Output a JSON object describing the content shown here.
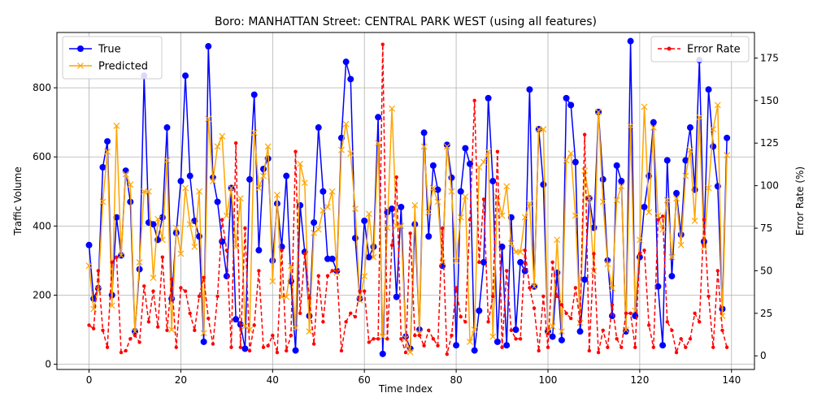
{
  "chart_data": {
    "type": "line",
    "title": "Boro: MANHATTAN Street: CENTRAL PARK WEST (using all features)",
    "xlabel": "Time Index",
    "ylabel_left": "Traffic Volume",
    "ylabel_right": "Error Rate (%)",
    "xlim": [
      -7,
      145
    ],
    "ylim_left": [
      -15,
      960
    ],
    "ylim_right": [
      -8,
      190
    ],
    "xticks": [
      0,
      20,
      40,
      60,
      80,
      100,
      120,
      140
    ],
    "yticks_left": [
      0,
      200,
      400,
      600,
      800
    ],
    "yticks_right": [
      0,
      25,
      50,
      75,
      100,
      125,
      150,
      175
    ],
    "grid": true,
    "legend_left": "upper-left",
    "legend_right": "upper-right",
    "series": [
      {
        "name": "True",
        "axis": "left",
        "color": "#0000ff",
        "marker": "o",
        "values": [
          345,
          190,
          220,
          570,
          645,
          200,
          425,
          315,
          560,
          470,
          95,
          275,
          835,
          410,
          405,
          360,
          425,
          685,
          190,
          380,
          530,
          835,
          545,
          415,
          370,
          65,
          920,
          540,
          470,
          355,
          255,
          510,
          130,
          115,
          45,
          535,
          780,
          330,
          565,
          595,
          300,
          465,
          340,
          545,
          240,
          40,
          460,
          325,
          140,
          410,
          685,
          500,
          305,
          305,
          270,
          655,
          875,
          825,
          365,
          190,
          415,
          310,
          340,
          715,
          30,
          440,
          450,
          195,
          455,
          80,
          45,
          405,
          100,
          670,
          370,
          575,
          505,
          285,
          635,
          540,
          55,
          500,
          625,
          580,
          40,
          155,
          295,
          770,
          530,
          65,
          340,
          55,
          425,
          100,
          295,
          270,
          795,
          225,
          680,
          520,
          95,
          80,
          265,
          70,
          770,
          750,
          585,
          95,
          245,
          480,
          395,
          730,
          535,
          300,
          140,
          575,
          530,
          95,
          935,
          140,
          310,
          455,
          545,
          700,
          225,
          55,
          590,
          255,
          495,
          375,
          590,
          685,
          505,
          880,
          355,
          795,
          630,
          515,
          160,
          655
        ]
      },
      {
        "name": "Predicted",
        "axis": "left",
        "color": "#ffa500",
        "marker": "x",
        "values": [
          285,
          160,
          215,
          470,
          615,
          170,
          690,
          315,
          550,
          520,
          95,
          295,
          500,
          500,
          250,
          420,
          360,
          590,
          100,
          395,
          320,
          510,
          405,
          340,
          500,
          90,
          710,
          530,
          630,
          660,
          430,
          510,
          340,
          480,
          110,
          100,
          670,
          510,
          545,
          630,
          240,
          490,
          195,
          195,
          285,
          105,
          580,
          525,
          95,
          380,
          390,
          445,
          455,
          500,
          265,
          620,
          695,
          610,
          450,
          185,
          255,
          435,
          310,
          640,
          80,
          395,
          740,
          400,
          400,
          75,
          35,
          460,
          90,
          630,
          440,
          510,
          470,
          295,
          630,
          500,
          300,
          425,
          485,
          65,
          100,
          570,
          585,
          615,
          80,
          485,
          430,
          515,
          350,
          325,
          325,
          425,
          465,
          225,
          680,
          680,
          95,
          110,
          360,
          95,
          590,
          610,
          430,
          120,
          560,
          480,
          270,
          730,
          470,
          290,
          220,
          475,
          515,
          100,
          690,
          155,
          360,
          745,
          440,
          685,
          430,
          390,
          475,
          310,
          480,
          345,
          545,
          620,
          415,
          715,
          340,
          510,
          680,
          750,
          140,
          605
        ]
      },
      {
        "name": "Error Rate",
        "axis": "right",
        "color": "#ff0000",
        "marker": ".",
        "dashed": true,
        "values": [
          18,
          16,
          50,
          15,
          5,
          55,
          58,
          2,
          3,
          10,
          12,
          8,
          41,
          20,
          38,
          17,
          58,
          15,
          45,
          5,
          40,
          38,
          25,
          15,
          35,
          46,
          22,
          7,
          35,
          80,
          62,
          5,
          125,
          5,
          75,
          3,
          18,
          50,
          5,
          6,
          12,
          2,
          62,
          3,
          12,
          120,
          25,
          60,
          34,
          7,
          47,
          20,
          47,
          50,
          50,
          3,
          20,
          25,
          23,
          38,
          38,
          8,
          10,
          10,
          183,
          10,
          65,
          105,
          10,
          2,
          72,
          12,
          12,
          6,
          15,
          10,
          6,
          75,
          1,
          12,
          40,
          23,
          20,
          80,
          150,
          55,
          92,
          20,
          35,
          120,
          5,
          50,
          15,
          10,
          10,
          62,
          40,
          28,
          3,
          35,
          5,
          55,
          35,
          30,
          25,
          22,
          40,
          20,
          130,
          3,
          60,
          2,
          15,
          5,
          30,
          10,
          5,
          25,
          25,
          5,
          60,
          62,
          18,
          5,
          80,
          82,
          20,
          15,
          2,
          10,
          5,
          10,
          25,
          20,
          80,
          35,
          5,
          50,
          15,
          5
        ]
      }
    ]
  }
}
